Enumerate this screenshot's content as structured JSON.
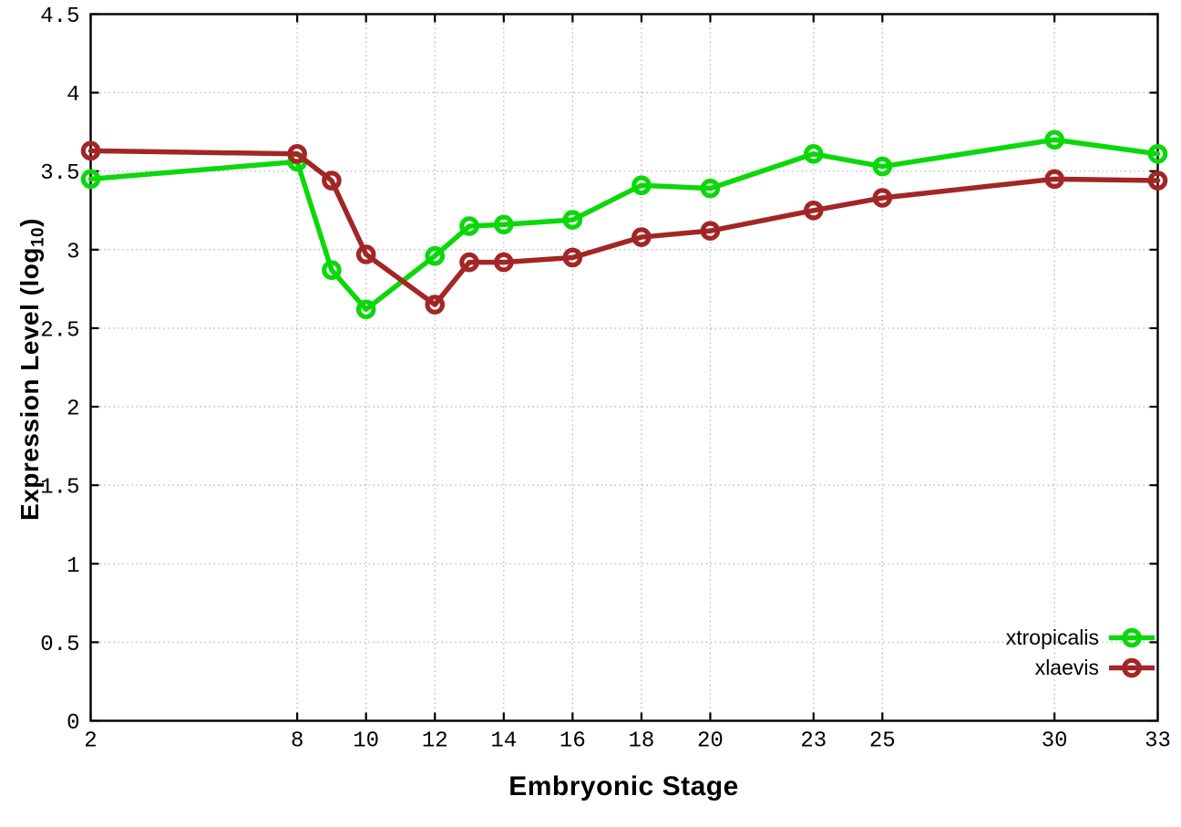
{
  "figure": {
    "background": "#ffffff",
    "axis_color": "#000000",
    "grid_color": "#b8b8b8",
    "x_axis_title": "Embryonic Stage",
    "y_axis_title_main": "Expression Level (log",
    "y_axis_title_sub": "10",
    "y_axis_title_close": ")"
  },
  "legend": {
    "position": "bottom-right",
    "entries": [
      {
        "label": "xtropicalis",
        "color": "#0bd80b"
      },
      {
        "label": "xlaevis",
        "color": "#a32626"
      }
    ]
  },
  "chart_data": {
    "type": "line",
    "title": "",
    "xlabel": "Embryonic Stage",
    "ylabel": "Expression Level (log10)",
    "xlim": [
      2,
      33
    ],
    "ylim": [
      0,
      4.5
    ],
    "x_ticks": [
      2,
      8,
      10,
      12,
      14,
      16,
      18,
      20,
      23,
      25,
      30,
      33
    ],
    "y_ticks": [
      0,
      0.5,
      1,
      1.5,
      2,
      2.5,
      3,
      3.5,
      4,
      4.5
    ],
    "grid": true,
    "legend_position": "bottom-right",
    "x": [
      2,
      8,
      9,
      10,
      12,
      13,
      14,
      16,
      18,
      20,
      23,
      25,
      30,
      33
    ],
    "series": [
      {
        "name": "xtropicalis",
        "color": "#0bd80b",
        "marker": "open-circle",
        "values": [
          3.45,
          3.56,
          2.87,
          2.62,
          2.96,
          3.15,
          3.16,
          3.19,
          3.41,
          3.39,
          3.61,
          3.53,
          3.7,
          3.61
        ]
      },
      {
        "name": "xlaevis",
        "color": "#a32626",
        "marker": "open-circle",
        "values": [
          3.63,
          3.61,
          3.44,
          2.97,
          2.65,
          2.92,
          2.92,
          2.95,
          3.08,
          3.12,
          3.25,
          3.33,
          3.45,
          3.44
        ]
      }
    ]
  }
}
